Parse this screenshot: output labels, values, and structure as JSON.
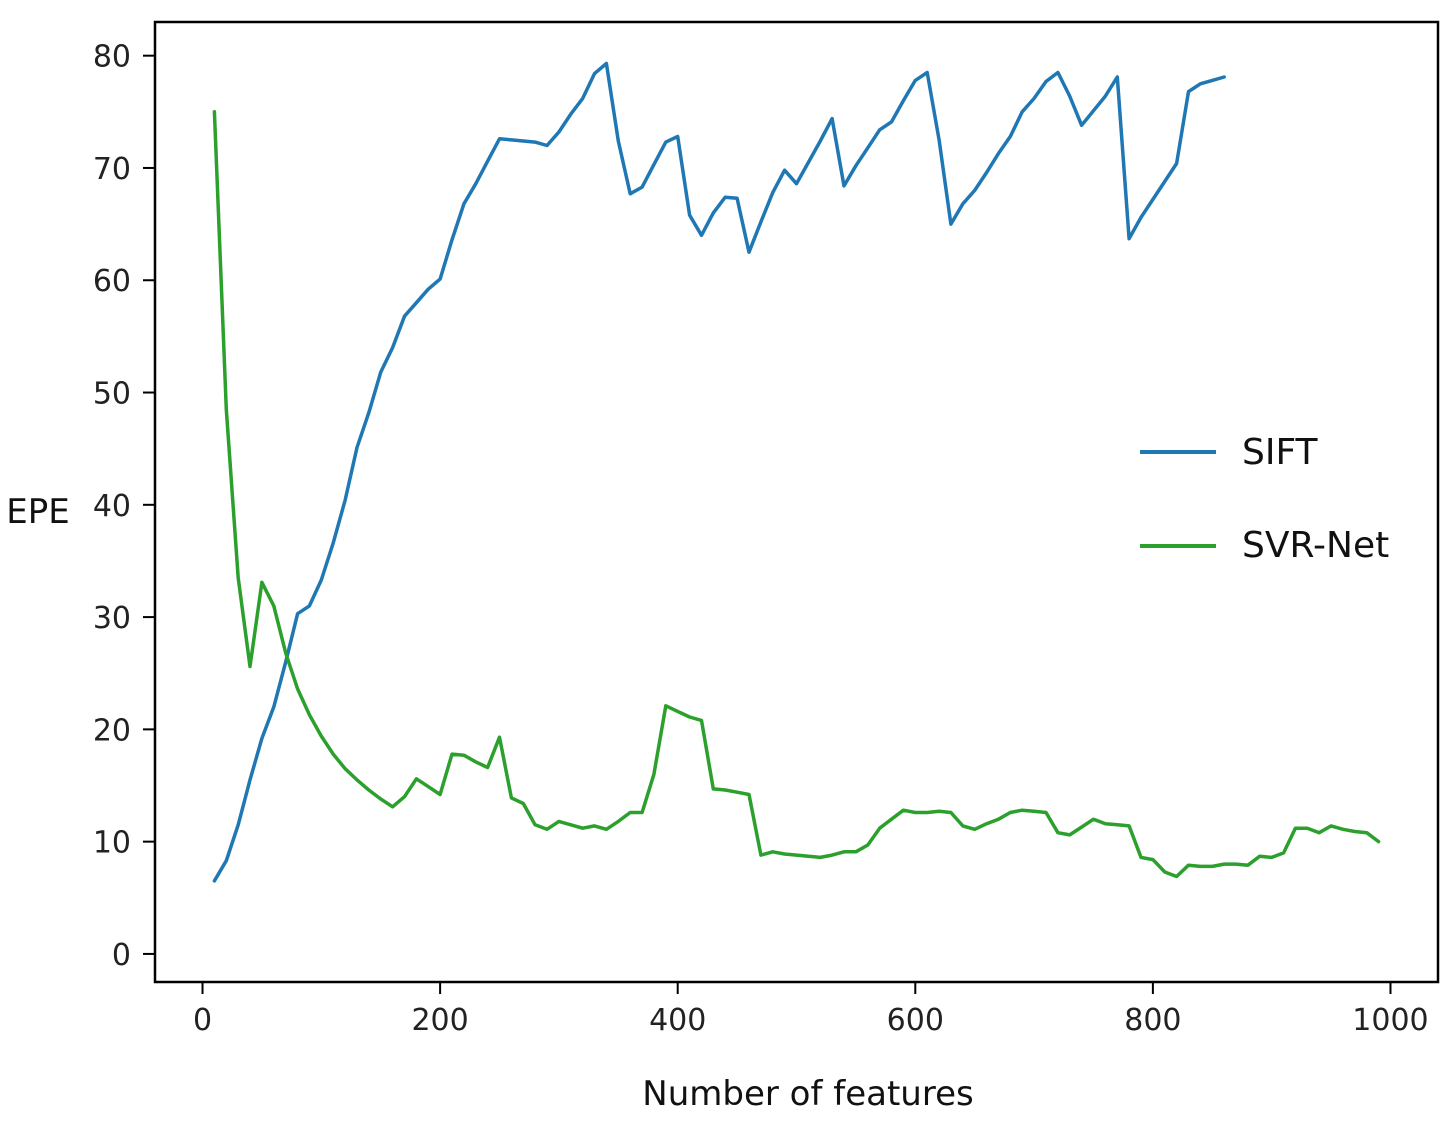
{
  "chart_data": {
    "type": "line",
    "title": "",
    "xlabel": "Number of features",
    "ylabel": "EPE",
    "xlim": [
      -40,
      1040
    ],
    "ylim": [
      -2.5,
      83
    ],
    "xticks": [
      0,
      200,
      400,
      600,
      800,
      1000
    ],
    "yticks": [
      0,
      10,
      20,
      30,
      40,
      50,
      60,
      70,
      80
    ],
    "grid": false,
    "legend_position": "center-right",
    "series": [
      {
        "name": "SIFT",
        "color": "#1f77b4",
        "x": [
          10,
          20,
          30,
          40,
          50,
          60,
          70,
          80,
          90,
          100,
          110,
          120,
          130,
          140,
          150,
          160,
          170,
          180,
          190,
          200,
          210,
          220,
          230,
          240,
          250,
          260,
          270,
          280,
          290,
          300,
          310,
          320,
          330,
          340,
          350,
          360,
          370,
          380,
          390,
          400,
          410,
          420,
          430,
          440,
          450,
          460,
          470,
          480,
          490,
          500,
          510,
          520,
          530,
          540,
          550,
          560,
          570,
          580,
          590,
          600,
          610,
          620,
          630,
          640,
          650,
          660,
          670,
          680,
          690,
          700,
          710,
          720,
          730,
          740,
          750,
          760,
          770,
          780,
          790,
          800,
          810,
          820,
          830,
          840,
          850,
          860
        ],
        "y": [
          6.5,
          8.3,
          11.5,
          15.5,
          19.2,
          22,
          26,
          30.3,
          31,
          33.3,
          36.6,
          40.4,
          45.1,
          48.2,
          51.8,
          54,
          56.8,
          58,
          59.2,
          60.1,
          63.6,
          66.8,
          68.6,
          70.6,
          72.6,
          72.5,
          72.4,
          72.3,
          72,
          73.2,
          74.8,
          76.2,
          78.4,
          79.3,
          72.4,
          67.7,
          68.3,
          70.3,
          72.3,
          72.8,
          65.8,
          64,
          66,
          67.4,
          67.3,
          62.5,
          65.2,
          67.8,
          69.8,
          68.6,
          70.5,
          72.4,
          74.4,
          68.4,
          70.2,
          71.8,
          73.4,
          74.1,
          76,
          77.8,
          78.5,
          72.5,
          65,
          66.8,
          68,
          69.6,
          71.3,
          72.8,
          75,
          76.2,
          77.7,
          78.5,
          76.4,
          73.8,
          75.1,
          76.4,
          78.1,
          63.7,
          65.6,
          67.2,
          68.8,
          70.4,
          76.8,
          77.5,
          77.8,
          78.1
        ]
      },
      {
        "name": "SVR-Net",
        "color": "#2ca02c",
        "x": [
          10,
          20,
          30,
          40,
          50,
          60,
          70,
          80,
          90,
          100,
          110,
          120,
          130,
          140,
          150,
          160,
          170,
          180,
          190,
          200,
          210,
          220,
          230,
          240,
          250,
          260,
          270,
          280,
          290,
          300,
          310,
          320,
          330,
          340,
          350,
          360,
          370,
          380,
          390,
          400,
          410,
          420,
          430,
          440,
          450,
          460,
          470,
          480,
          490,
          500,
          510,
          520,
          530,
          540,
          550,
          560,
          570,
          580,
          590,
          600,
          610,
          620,
          630,
          640,
          650,
          660,
          670,
          680,
          690,
          700,
          710,
          720,
          730,
          740,
          750,
          760,
          770,
          780,
          790,
          800,
          810,
          820,
          830,
          840,
          850,
          860,
          870,
          880,
          890,
          900,
          910,
          920,
          930,
          940,
          950,
          960,
          970,
          980,
          990
        ],
        "y": [
          75,
          48.5,
          33.5,
          25.6,
          33.1,
          31,
          26.8,
          23.6,
          21.3,
          19.4,
          17.8,
          16.5,
          15.5,
          14.6,
          13.8,
          13.1,
          14,
          15.6,
          14.9,
          14.2,
          17.8,
          17.7,
          17.1,
          16.6,
          19.3,
          13.9,
          13.4,
          11.5,
          11.1,
          11.8,
          11.5,
          11.2,
          11.4,
          11.1,
          11.8,
          12.6,
          12.6,
          16,
          22.1,
          21.6,
          21.1,
          20.8,
          14.7,
          14.6,
          14.4,
          14.2,
          8.8,
          9.1,
          8.9,
          8.8,
          8.7,
          8.6,
          8.8,
          9.1,
          9.1,
          9.7,
          11.2,
          12,
          12.8,
          12.6,
          12.6,
          12.7,
          12.6,
          11.4,
          11.1,
          11.6,
          12,
          12.6,
          12.8,
          12.7,
          12.6,
          10.8,
          10.6,
          11.3,
          12,
          11.6,
          11.5,
          11.4,
          8.6,
          8.4,
          7.3,
          6.9,
          7.9,
          7.8,
          7.8,
          8,
          8,
          7.9,
          8.7,
          8.6,
          9,
          11.2,
          11.2,
          10.8,
          11.4,
          11.1,
          10.9,
          10.8,
          10
        ]
      }
    ]
  }
}
